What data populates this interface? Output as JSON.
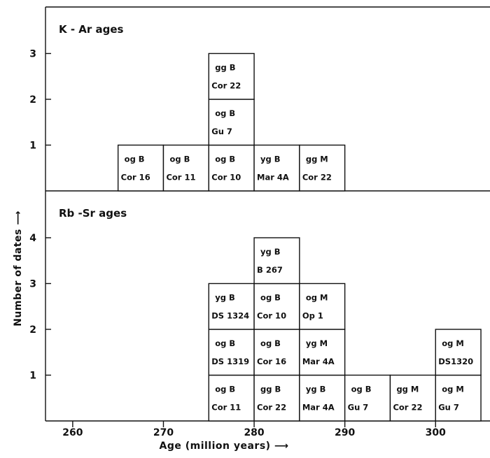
{
  "chart_data": {
    "type": "bar",
    "xlabel": "Age (million years) ⟶",
    "ylabel": "Number of dates ⟶",
    "xlim": [
      257,
      306
    ],
    "x_ticks": [
      260,
      270,
      280,
      290,
      300
    ],
    "bin_width": 5,
    "panels": [
      {
        "title": "K - Ar ages",
        "ylim": [
          0,
          3.95
        ],
        "y_ticks": [
          1,
          2,
          3
        ],
        "bins": [
          {
            "start": 265,
            "count": 1,
            "samples": [
              {
                "rock": "og B",
                "sample": "Cor 16"
              }
            ]
          },
          {
            "start": 270,
            "count": 1,
            "samples": [
              {
                "rock": "og B",
                "sample": "Cor 11"
              }
            ]
          },
          {
            "start": 275,
            "count": 3,
            "samples": [
              {
                "rock": "og B",
                "sample": "Cor 10"
              },
              {
                "rock": "og B",
                "sample": "Gu 7"
              },
              {
                "rock": "gg B",
                "sample": "Cor 22"
              }
            ]
          },
          {
            "start": 280,
            "count": 1,
            "samples": [
              {
                "rock": "yg B",
                "sample": "Mar 4A"
              }
            ]
          },
          {
            "start": 285,
            "count": 1,
            "samples": [
              {
                "rock": "gg M",
                "sample": "Cor 22"
              }
            ]
          }
        ]
      },
      {
        "title": "Rb -Sr ages",
        "ylim": [
          0,
          4.95
        ],
        "y_ticks": [
          1,
          2,
          3,
          4
        ],
        "bins": [
          {
            "start": 275,
            "count": 3,
            "samples": [
              {
                "rock": "og B",
                "sample": "Cor 11"
              },
              {
                "rock": "og B",
                "sample": "DS 1319"
              },
              {
                "rock": "yg B",
                "sample": "DS 1324"
              }
            ]
          },
          {
            "start": 280,
            "count": 4,
            "samples": [
              {
                "rock": "gg B",
                "sample": "Cor 22"
              },
              {
                "rock": "og B",
                "sample": "Cor 16"
              },
              {
                "rock": "og B",
                "sample": "Cor 10"
              },
              {
                "rock": "yg B",
                "sample": "B 267"
              }
            ]
          },
          {
            "start": 285,
            "count": 3,
            "samples": [
              {
                "rock": "yg B",
                "sample": "Mar 4A"
              },
              {
                "rock": "yg M",
                "sample": "Mar 4A"
              },
              {
                "rock": "og M",
                "sample": "Op 1"
              }
            ]
          },
          {
            "start": 290,
            "count": 1,
            "samples": [
              {
                "rock": "og B",
                "sample": "Gu 7"
              }
            ]
          },
          {
            "start": 295,
            "count": 1,
            "samples": [
              {
                "rock": "gg M",
                "sample": "Cor 22"
              }
            ]
          },
          {
            "start": 300,
            "count": 2,
            "samples": [
              {
                "rock": "og M",
                "sample": "Gu 7"
              },
              {
                "rock": "og M",
                "sample": "DS1320"
              }
            ]
          }
        ]
      }
    ]
  }
}
